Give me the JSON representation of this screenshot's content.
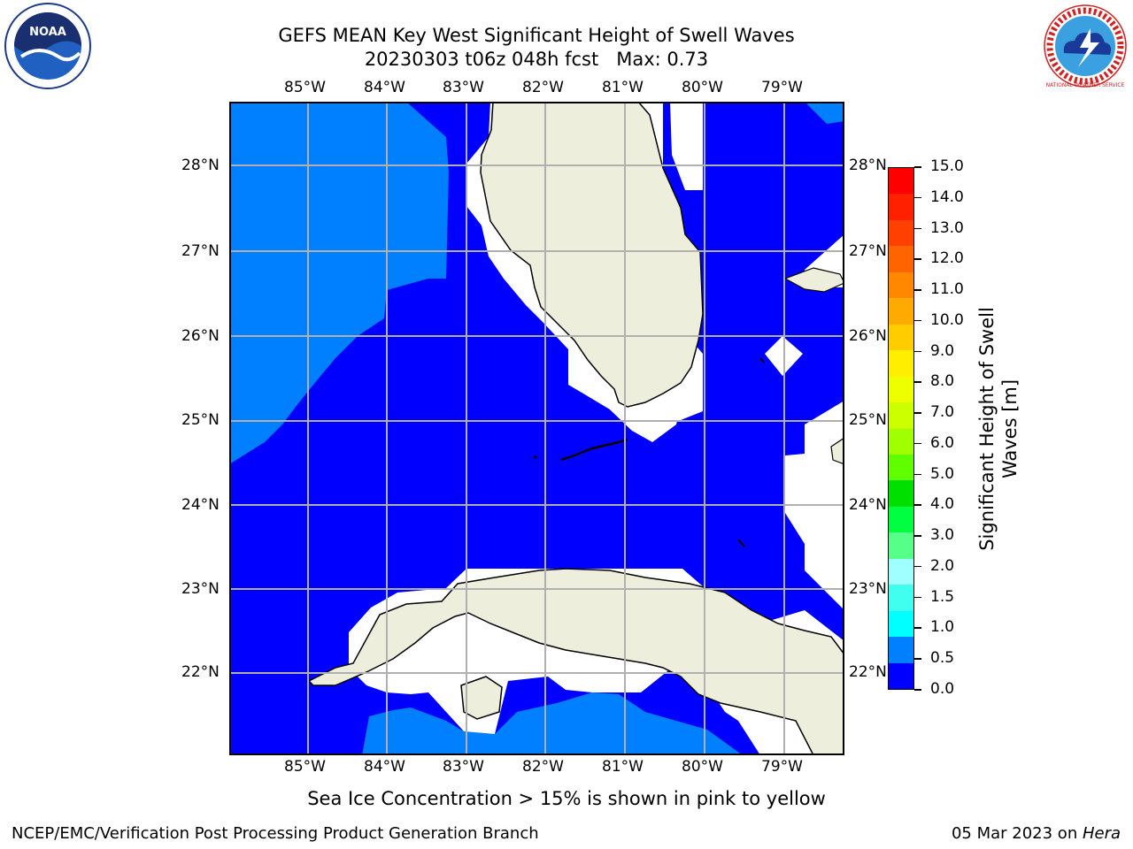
{
  "header": {
    "title_line1": "GEFS MEAN Key West Significant Height of Swell Waves",
    "title_line2": "20230303 t06z 048h fcst   Max: 0.73"
  },
  "logos": {
    "left_text": "NOAA",
    "right_text": "NATIONAL WEATHER SERVICE"
  },
  "map": {
    "lon_labels": [
      "85°W",
      "84°W",
      "83°W",
      "82°W",
      "81°W",
      "80°W",
      "79°W"
    ],
    "lat_labels": [
      "28°N",
      "27°N",
      "26°N",
      "25°N",
      "24°N",
      "23°N",
      "22°N"
    ],
    "colors": {
      "deep_blue": "#0000ff",
      "light_blue": "#0080ff",
      "land": "#eeeedd",
      "grid": "#b0b0b0"
    }
  },
  "colorbar": {
    "label_line1": "Significant Height of Swell",
    "label_line2": "Waves [m]",
    "tick_labels": [
      "15.0",
      "14.0",
      "13.0",
      "12.0",
      "11.0",
      "10.0",
      "9.0",
      "8.0",
      "7.0",
      "6.0",
      "5.0",
      "4.0",
      "3.0",
      "2.0",
      "1.5",
      "1.0",
      "0.5",
      "0.0"
    ],
    "colors_top_to_bottom": [
      "#ff0000",
      "#ff2000",
      "#ff4000",
      "#ff6400",
      "#ff8800",
      "#ffaa00",
      "#ffcc00",
      "#ffee00",
      "#eeff00",
      "#ccff00",
      "#a0ff00",
      "#60ff00",
      "#00e000",
      "#00ff40",
      "#55ff88",
      "#a0ffff",
      "#40ffee",
      "#00ffff",
      "#0080ff",
      "#0000ff"
    ]
  },
  "footer": {
    "note": "Sea Ice Concentration > 15% is shown in pink to yellow",
    "credit": "NCEP/EMC/Verification Post Processing Product Generation Branch",
    "date_prefix": "05 Mar 2023 on ",
    "host": "Hera"
  }
}
